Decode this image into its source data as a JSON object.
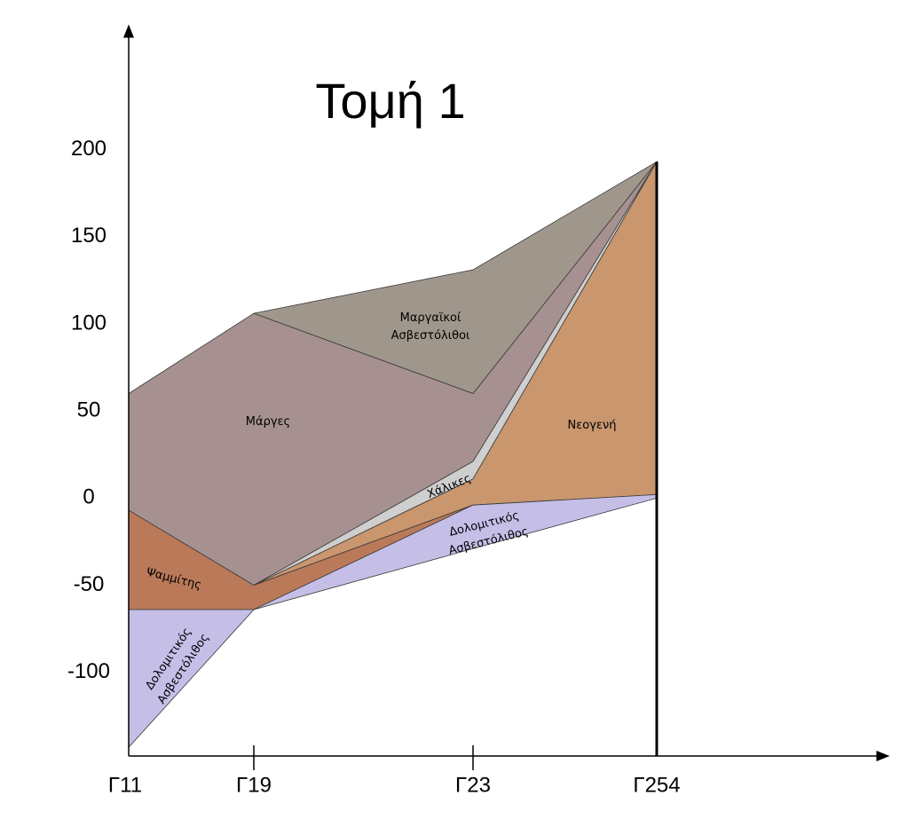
{
  "chart_data": {
    "type": "cross-section",
    "title": "Τομή 1",
    "categories": [
      "Γ11",
      "Γ19",
      "Γ23",
      "Γ254"
    ],
    "ylim": [
      -148,
      268
    ],
    "yticks": [
      200,
      150,
      100,
      50,
      0,
      -50,
      -100
    ],
    "layers": [
      {
        "name": [
          "Μάργες"
        ],
        "color": "#a79190",
        "top": [
          60,
          106,
          60,
          193
        ],
        "bottom": [
          -7,
          -50,
          21,
          193
        ]
      },
      {
        "name": [
          "Μαργαϊκοί",
          "Ασβεστόλιθοι"
        ],
        "color": "#a0978c",
        "top": [
          null,
          106,
          131,
          193
        ],
        "bottom": [
          null,
          106,
          60,
          193
        ]
      },
      {
        "name": [
          "Χάλικες"
        ],
        "color": "#cfcfcf",
        "top": [
          null,
          -50,
          21,
          193
        ],
        "bottom": [
          null,
          -50,
          11,
          193
        ]
      },
      {
        "name": [
          "Νεογενή"
        ],
        "color": "#c9966e",
        "top": [
          null,
          -50,
          11,
          193
        ],
        "bottom": [
          null,
          -50,
          -4,
          2
        ]
      },
      {
        "name": [
          "Ψαμμίτης"
        ],
        "color": "#ba7a5a",
        "top": [
          -7,
          -50,
          -4,
          null
        ],
        "bottom": [
          -64,
          -64,
          -4,
          null
        ]
      },
      {
        "name": [
          "Δολομιτικός",
          "Ασβεστόλιθος"
        ],
        "color": "#c5bfe8",
        "top": [
          -64,
          -64,
          -4,
          2
        ],
        "bottom": [
          -143,
          -64,
          -29,
          0
        ]
      }
    ]
  }
}
